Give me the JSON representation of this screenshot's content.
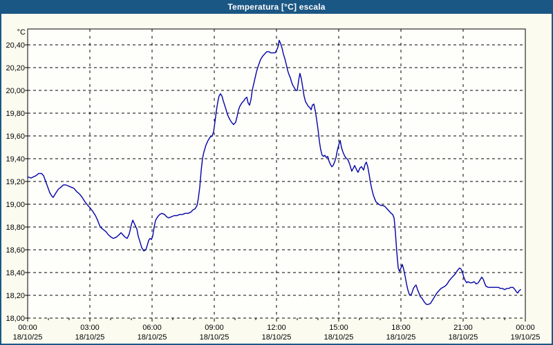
{
  "window": {
    "title": "Temperatura [°C] escala"
  },
  "colors": {
    "titlebar_bg": "#1b5784",
    "titlebar_text": "#ffffff",
    "window_border": "#1b5784",
    "page_bg": "#fbfbf0",
    "plot_bg": "#fefefa",
    "grid": "#000000",
    "line": "#0000a8",
    "label": "#000000"
  },
  "chart_data": {
    "type": "line",
    "title": "Temperatura [°C] escala",
    "ylabel": "°C",
    "ylim": [
      18.0,
      20.4
    ],
    "y_tick_step": 0.2,
    "grid": true,
    "legend": "none",
    "y_ticks": [
      {
        "value": 20.4,
        "label": "20,40"
      },
      {
        "value": 20.2,
        "label": "20,20"
      },
      {
        "value": 20.0,
        "label": "20,00"
      },
      {
        "value": 19.8,
        "label": "19,80"
      },
      {
        "value": 19.6,
        "label": "19,60"
      },
      {
        "value": 19.4,
        "label": "19,40"
      },
      {
        "value": 19.2,
        "label": "19,20"
      },
      {
        "value": 19.0,
        "label": "19,00"
      },
      {
        "value": 18.8,
        "label": "18,80"
      },
      {
        "value": 18.6,
        "label": "18,60"
      },
      {
        "value": 18.4,
        "label": "18,40"
      },
      {
        "value": 18.2,
        "label": "18,20"
      },
      {
        "value": 18.0,
        "label": "18,00"
      }
    ],
    "x_range_hours": [
      0,
      24
    ],
    "x_major_tick_hours": 3,
    "x_minor_tick_hours": 1,
    "x_ticks": [
      {
        "t": 0,
        "time": "00:00",
        "date": "18/10/25"
      },
      {
        "t": 3,
        "time": "03:00",
        "date": "18/10/25"
      },
      {
        "t": 6,
        "time": "06:00",
        "date": "18/10/25"
      },
      {
        "t": 9,
        "time": "09:00",
        "date": "18/10/25"
      },
      {
        "t": 12,
        "time": "12:00",
        "date": "18/10/25"
      },
      {
        "t": 15,
        "time": "15:00",
        "date": "18/10/25"
      },
      {
        "t": 18,
        "time": "18:00",
        "date": "18/10/25"
      },
      {
        "t": 21,
        "time": "21:00",
        "date": "18/10/25"
      },
      {
        "t": 24,
        "time": "00:00",
        "date": "19/10/25"
      }
    ],
    "series": [
      {
        "name": "Temperatura",
        "unit": "°C",
        "points": [
          [
            0.0,
            19.24
          ],
          [
            0.17,
            19.23
          ],
          [
            0.27,
            19.24
          ],
          [
            0.4,
            19.25
          ],
          [
            0.53,
            19.27
          ],
          [
            0.67,
            19.27
          ],
          [
            0.77,
            19.25
          ],
          [
            0.87,
            19.2
          ],
          [
            0.97,
            19.15
          ],
          [
            1.07,
            19.1
          ],
          [
            1.17,
            19.07
          ],
          [
            1.23,
            19.06
          ],
          [
            1.33,
            19.09
          ],
          [
            1.47,
            19.13
          ],
          [
            1.6,
            19.15
          ],
          [
            1.73,
            19.17
          ],
          [
            1.83,
            19.17
          ],
          [
            1.97,
            19.16
          ],
          [
            2.1,
            19.15
          ],
          [
            2.23,
            19.14
          ],
          [
            2.37,
            19.11
          ],
          [
            2.5,
            19.09
          ],
          [
            2.63,
            19.06
          ],
          [
            2.77,
            19.02
          ],
          [
            2.9,
            18.99
          ],
          [
            3.0,
            18.97
          ],
          [
            3.13,
            18.94
          ],
          [
            3.27,
            18.9
          ],
          [
            3.37,
            18.86
          ],
          [
            3.5,
            18.8
          ],
          [
            3.63,
            18.78
          ],
          [
            3.77,
            18.76
          ],
          [
            3.9,
            18.73
          ],
          [
            4.03,
            18.71
          ],
          [
            4.13,
            18.7
          ],
          [
            4.27,
            18.71
          ],
          [
            4.4,
            18.73
          ],
          [
            4.5,
            18.75
          ],
          [
            4.6,
            18.73
          ],
          [
            4.7,
            18.71
          ],
          [
            4.8,
            18.7
          ],
          [
            4.9,
            18.74
          ],
          [
            5.0,
            18.82
          ],
          [
            5.07,
            18.86
          ],
          [
            5.17,
            18.82
          ],
          [
            5.27,
            18.78
          ],
          [
            5.33,
            18.72
          ],
          [
            5.4,
            18.68
          ],
          [
            5.5,
            18.62
          ],
          [
            5.6,
            18.59
          ],
          [
            5.7,
            18.6
          ],
          [
            5.77,
            18.64
          ],
          [
            5.83,
            18.68
          ],
          [
            5.9,
            18.7
          ],
          [
            5.97,
            18.69
          ],
          [
            6.03,
            18.72
          ],
          [
            6.1,
            18.8
          ],
          [
            6.17,
            18.86
          ],
          [
            6.27,
            18.89
          ],
          [
            6.37,
            18.91
          ],
          [
            6.47,
            18.92
          ],
          [
            6.6,
            18.91
          ],
          [
            6.7,
            18.89
          ],
          [
            6.8,
            18.88
          ],
          [
            6.93,
            18.89
          ],
          [
            7.07,
            18.9
          ],
          [
            7.2,
            18.9
          ],
          [
            7.33,
            18.91
          ],
          [
            7.47,
            18.91
          ],
          [
            7.6,
            18.92
          ],
          [
            7.73,
            18.92
          ],
          [
            7.87,
            18.93
          ],
          [
            7.97,
            18.95
          ],
          [
            8.07,
            18.96
          ],
          [
            8.17,
            18.99
          ],
          [
            8.23,
            19.05
          ],
          [
            8.3,
            19.15
          ],
          [
            8.37,
            19.3
          ],
          [
            8.43,
            19.4
          ],
          [
            8.5,
            19.46
          ],
          [
            8.6,
            19.52
          ],
          [
            8.7,
            19.56
          ],
          [
            8.8,
            19.59
          ],
          [
            8.9,
            19.6
          ],
          [
            8.97,
            19.64
          ],
          [
            9.03,
            19.72
          ],
          [
            9.1,
            19.82
          ],
          [
            9.17,
            19.9
          ],
          [
            9.23,
            19.95
          ],
          [
            9.3,
            19.97
          ],
          [
            9.37,
            19.95
          ],
          [
            9.43,
            19.91
          ],
          [
            9.5,
            19.87
          ],
          [
            9.57,
            19.83
          ],
          [
            9.63,
            19.79
          ],
          [
            9.73,
            19.75
          ],
          [
            9.83,
            19.72
          ],
          [
            9.93,
            19.7
          ],
          [
            10.03,
            19.72
          ],
          [
            10.1,
            19.77
          ],
          [
            10.17,
            19.83
          ],
          [
            10.23,
            19.86
          ],
          [
            10.33,
            19.89
          ],
          [
            10.43,
            19.91
          ],
          [
            10.5,
            19.93
          ],
          [
            10.57,
            19.94
          ],
          [
            10.63,
            19.89
          ],
          [
            10.7,
            19.87
          ],
          [
            10.77,
            19.92
          ],
          [
            10.83,
            20.0
          ],
          [
            10.93,
            20.08
          ],
          [
            11.03,
            20.16
          ],
          [
            11.13,
            20.22
          ],
          [
            11.23,
            20.27
          ],
          [
            11.33,
            20.3
          ],
          [
            11.43,
            20.32
          ],
          [
            11.53,
            20.34
          ],
          [
            11.63,
            20.34
          ],
          [
            11.73,
            20.33
          ],
          [
            11.83,
            20.33
          ],
          [
            11.93,
            20.33
          ],
          [
            12.0,
            20.35
          ],
          [
            12.07,
            20.38
          ],
          [
            12.13,
            20.44
          ],
          [
            12.2,
            20.41
          ],
          [
            12.27,
            20.37
          ],
          [
            12.33,
            20.32
          ],
          [
            12.4,
            20.28
          ],
          [
            12.47,
            20.23
          ],
          [
            12.53,
            20.18
          ],
          [
            12.6,
            20.14
          ],
          [
            12.67,
            20.11
          ],
          [
            12.73,
            20.07
          ],
          [
            12.8,
            20.04
          ],
          [
            12.87,
            20.02
          ],
          [
            12.93,
            20.0
          ],
          [
            13.0,
            20.0
          ],
          [
            13.07,
            20.09
          ],
          [
            13.13,
            20.15
          ],
          [
            13.2,
            20.1
          ],
          [
            13.27,
            20.02
          ],
          [
            13.33,
            19.95
          ],
          [
            13.4,
            19.9
          ],
          [
            13.47,
            19.88
          ],
          [
            13.53,
            19.86
          ],
          [
            13.6,
            19.85
          ],
          [
            13.67,
            19.83
          ],
          [
            13.73,
            19.87
          ],
          [
            13.8,
            19.88
          ],
          [
            13.87,
            19.82
          ],
          [
            13.93,
            19.75
          ],
          [
            14.0,
            19.66
          ],
          [
            14.07,
            19.55
          ],
          [
            14.13,
            19.48
          ],
          [
            14.2,
            19.43
          ],
          [
            14.27,
            19.42
          ],
          [
            14.33,
            19.43
          ],
          [
            14.4,
            19.41
          ],
          [
            14.47,
            19.42
          ],
          [
            14.53,
            19.38
          ],
          [
            14.6,
            19.35
          ],
          [
            14.67,
            19.33
          ],
          [
            14.73,
            19.34
          ],
          [
            14.8,
            19.37
          ],
          [
            14.87,
            19.41
          ],
          [
            14.93,
            19.47
          ],
          [
            15.0,
            19.52
          ],
          [
            15.07,
            19.56
          ],
          [
            15.13,
            19.5
          ],
          [
            15.2,
            19.46
          ],
          [
            15.27,
            19.43
          ],
          [
            15.33,
            19.41
          ],
          [
            15.4,
            19.4
          ],
          [
            15.47,
            19.38
          ],
          [
            15.53,
            19.35
          ],
          [
            15.63,
            19.29
          ],
          [
            15.77,
            19.34
          ],
          [
            15.87,
            19.3
          ],
          [
            15.93,
            19.28
          ],
          [
            16.03,
            19.32
          ],
          [
            16.1,
            19.33
          ],
          [
            16.2,
            19.3
          ],
          [
            16.27,
            19.35
          ],
          [
            16.33,
            19.37
          ],
          [
            16.4,
            19.33
          ],
          [
            16.47,
            19.26
          ],
          [
            16.53,
            19.19
          ],
          [
            16.6,
            19.13
          ],
          [
            16.67,
            19.08
          ],
          [
            16.73,
            19.05
          ],
          [
            16.8,
            19.02
          ],
          [
            16.87,
            19.01
          ],
          [
            16.93,
            19.0
          ],
          [
            17.03,
            18.99
          ],
          [
            17.13,
            18.99
          ],
          [
            17.23,
            18.98
          ],
          [
            17.33,
            18.96
          ],
          [
            17.43,
            18.94
          ],
          [
            17.53,
            18.92
          ],
          [
            17.6,
            18.91
          ],
          [
            17.67,
            18.88
          ],
          [
            17.73,
            18.76
          ],
          [
            17.8,
            18.58
          ],
          [
            17.87,
            18.44
          ],
          [
            17.93,
            18.41
          ],
          [
            18.0,
            18.44
          ],
          [
            18.07,
            18.47
          ],
          [
            18.13,
            18.43
          ],
          [
            18.2,
            18.37
          ],
          [
            18.27,
            18.3
          ],
          [
            18.33,
            18.25
          ],
          [
            18.4,
            18.21
          ],
          [
            18.47,
            18.2
          ],
          [
            18.53,
            18.22
          ],
          [
            18.6,
            18.26
          ],
          [
            18.67,
            18.28
          ],
          [
            18.73,
            18.29
          ],
          [
            18.8,
            18.25
          ],
          [
            18.87,
            18.22
          ],
          [
            18.93,
            18.19
          ],
          [
            19.03,
            18.17
          ],
          [
            19.13,
            18.14
          ],
          [
            19.23,
            18.12
          ],
          [
            19.33,
            18.12
          ],
          [
            19.43,
            18.13
          ],
          [
            19.53,
            18.16
          ],
          [
            19.63,
            18.19
          ],
          [
            19.73,
            18.22
          ],
          [
            19.83,
            18.24
          ],
          [
            19.93,
            18.26
          ],
          [
            20.03,
            18.27
          ],
          [
            20.13,
            18.28
          ],
          [
            20.23,
            18.3
          ],
          [
            20.33,
            18.33
          ],
          [
            20.43,
            18.35
          ],
          [
            20.53,
            18.37
          ],
          [
            20.63,
            18.39
          ],
          [
            20.73,
            18.42
          ],
          [
            20.83,
            18.44
          ],
          [
            20.9,
            18.43
          ],
          [
            20.97,
            18.4
          ],
          [
            21.03,
            18.36
          ],
          [
            21.1,
            18.33
          ],
          [
            21.17,
            18.31
          ],
          [
            21.23,
            18.32
          ],
          [
            21.33,
            18.31
          ],
          [
            21.43,
            18.31
          ],
          [
            21.53,
            18.32
          ],
          [
            21.63,
            18.3
          ],
          [
            21.73,
            18.31
          ],
          [
            21.83,
            18.34
          ],
          [
            21.9,
            18.36
          ],
          [
            21.97,
            18.34
          ],
          [
            22.03,
            18.31
          ],
          [
            22.1,
            18.28
          ],
          [
            22.2,
            18.27
          ],
          [
            22.3,
            18.27
          ],
          [
            22.4,
            18.27
          ],
          [
            22.5,
            18.27
          ],
          [
            22.6,
            18.27
          ],
          [
            22.7,
            18.27
          ],
          [
            22.8,
            18.26
          ],
          [
            22.9,
            18.26
          ],
          [
            23.0,
            18.25
          ],
          [
            23.1,
            18.26
          ],
          [
            23.2,
            18.26
          ],
          [
            23.3,
            18.27
          ],
          [
            23.4,
            18.27
          ],
          [
            23.5,
            18.25
          ],
          [
            23.57,
            18.23
          ],
          [
            23.63,
            18.22
          ],
          [
            23.7,
            18.24
          ],
          [
            23.77,
            18.25
          ]
        ]
      }
    ]
  }
}
